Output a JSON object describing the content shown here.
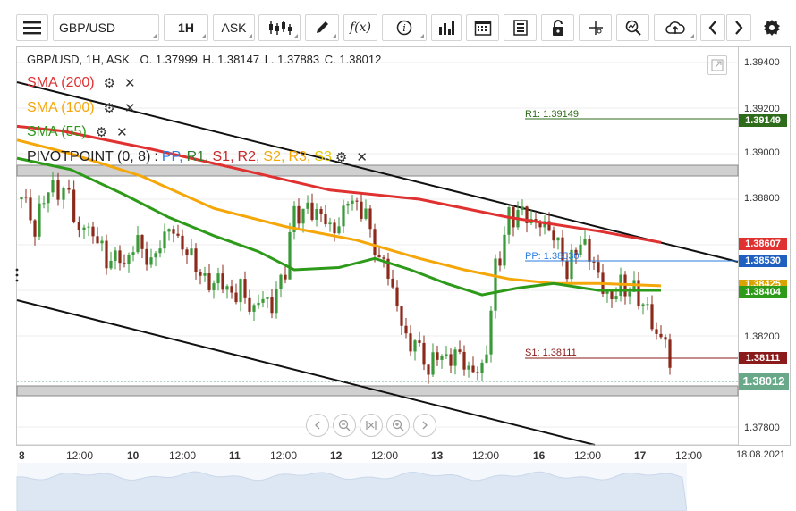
{
  "toolbar": {
    "symbol": "GBP/USD",
    "timeframe": "1H",
    "price_type": "ASK",
    "fx_label": "f(x)",
    "icons": [
      "menu-icon",
      "candlestick-icon",
      "pencil-icon",
      "function-icon",
      "info-icon",
      "bar-chart-icon",
      "calendar-icon",
      "document-icon",
      "lock-icon",
      "crosshair-icon",
      "zoom-icon",
      "cloud-upload-icon",
      "chevron-left-icon",
      "chevron-right-icon",
      "gear-icon"
    ]
  },
  "header": {
    "symbol_tf": "GBP/USD, 1H, ASK",
    "open": "O. 1.37999",
    "high": "H. 1.38147",
    "low": "L. 1.37883",
    "close": "C. 1.38012"
  },
  "indicators": {
    "sma200": {
      "label": "SMA (200)",
      "color": "#e03131"
    },
    "sma100": {
      "label": "SMA (100)",
      "color": "#f5a70a"
    },
    "sma55": {
      "label": "SMA (55)",
      "color": "#2e9a1a"
    },
    "pivot": {
      "label": "PIVOTPOINT (0, 8)",
      "sep": ":",
      "pp": "PP,",
      "r1": "R1,",
      "s1": "S1,",
      "r2": "R2,",
      "s2": "S2,",
      "r3": "R3,",
      "s3": "S3",
      "colors": {
        "pp": "#2b7de0",
        "r1": "#2e7d32",
        "s1": "#c62828",
        "r2": "#c62828",
        "s2": "#f5a70a",
        "r3": "#f5a70a",
        "s3": "#f5d100"
      }
    }
  },
  "levels": {
    "r1": {
      "label": "R1: 1.39149",
      "value": 1.39149,
      "color": "#2e6b1a"
    },
    "pp": {
      "label": "PP: 1.38530",
      "value": 1.3853,
      "color": "#2b7de0"
    },
    "s1": {
      "label": "S1: 1.38111",
      "value": 1.38111,
      "color": "#8b1a1a"
    }
  },
  "y_axis": {
    "ticks": [
      "1.39400",
      "1.39200",
      "1.39000",
      "1.38800",
      "1.38200",
      "1.37800"
    ],
    "badges": [
      {
        "text": "1.39149",
        "color": "#2e6b1a"
      },
      {
        "text": "1.38607",
        "color": "#e03131"
      },
      {
        "text": "1.38530",
        "color": "#1f5fbf"
      },
      {
        "text": "1.38425",
        "color": "#d9a400"
      },
      {
        "text": "1.38404",
        "color": "#2e9a1a"
      },
      {
        "text": "1.38111",
        "color": "#8b1a1a"
      },
      {
        "text": "1.38012",
        "color": "#6aa88a"
      }
    ]
  },
  "x_axis": {
    "labels": [
      "8",
      "12:00",
      "10",
      "12:00",
      "11",
      "12:00",
      "12",
      "12:00",
      "13",
      "12:00",
      "16",
      "12:00",
      "17",
      "12:00",
      "18.08.2021"
    ]
  },
  "chart_data": {
    "type": "line",
    "title": "GBP/USD, 1H, ASK",
    "ylim": [
      1.3775,
      1.395
    ],
    "grid": true,
    "series": [
      {
        "name": "SMA (200)",
        "x": [
          0,
          50,
          150,
          250,
          350,
          450,
          550,
          650,
          720
        ],
        "values": [
          1.3912,
          1.391,
          1.3902,
          1.3893,
          1.3884,
          1.388,
          1.3872,
          1.3866,
          1.3861
        ]
      },
      {
        "name": "SMA (100)",
        "x": [
          0,
          60,
          140,
          220,
          300,
          380,
          450,
          500,
          550,
          600,
          650,
          720
        ],
        "values": [
          1.3906,
          1.39,
          1.389,
          1.3876,
          1.3868,
          1.3862,
          1.3854,
          1.3849,
          1.3845,
          1.3843,
          1.3843,
          1.3842
        ]
      },
      {
        "name": "SMA (55)",
        "x": [
          0,
          60,
          120,
          170,
          220,
          270,
          310,
          360,
          400,
          440,
          480,
          520,
          560,
          600,
          650,
          720
        ],
        "values": [
          1.3898,
          1.3893,
          1.3882,
          1.3872,
          1.3864,
          1.3857,
          1.3849,
          1.385,
          1.3854,
          1.3849,
          1.3843,
          1.3838,
          1.3841,
          1.3843,
          1.384,
          1.384
        ]
      }
    ],
    "channel": [
      {
        "name": "upper",
        "from": [
          0,
          1.3928
        ],
        "to": [
          800,
          1.3855
        ]
      },
      {
        "name": "lower",
        "from": [
          0,
          1.3834
        ],
        "to": [
          640,
          1.3768
        ]
      }
    ],
    "candles_hint": "GBP/USD hourly candles from 9 to 17 Aug 2021"
  }
}
